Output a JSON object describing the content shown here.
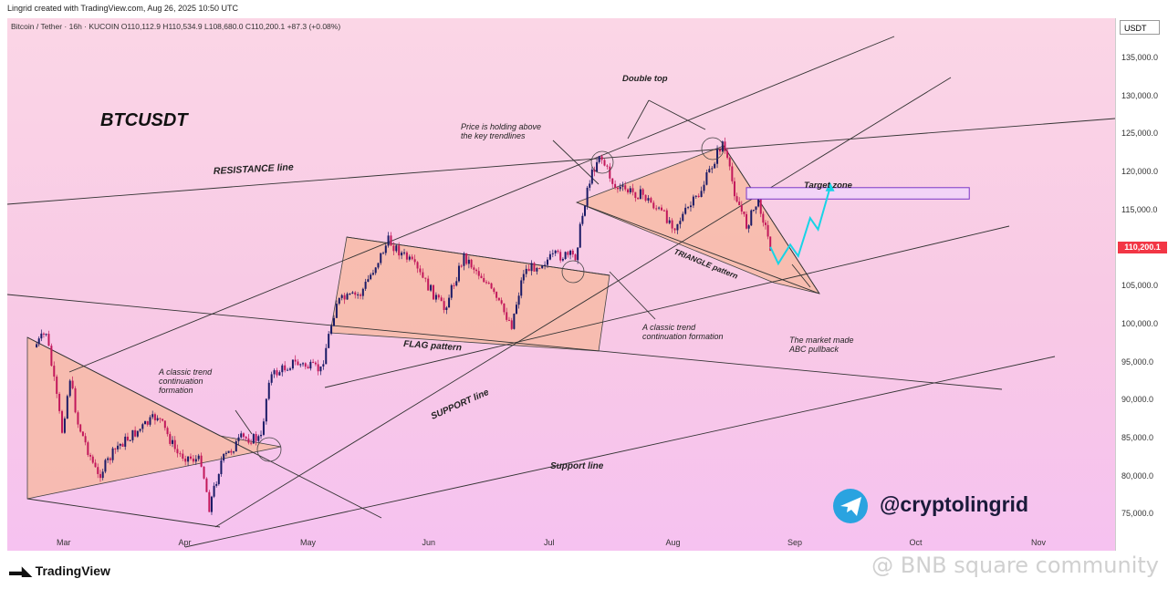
{
  "header": {
    "created_by": "Lingrid created with TradingView.com, Aug 26, 2025 10:50 UTC",
    "symbol_line": "Bitcoin / Tether · 16h · KUCOIN  O110,112.9  H110,534.9  L108,680.0  C110,200.1  +87.3 (+0.08%)"
  },
  "price_axis": {
    "currency": "USDT",
    "last_price": "110,200.1",
    "last_price_value": 110200.1,
    "ticks": [
      {
        "label": "135,000.0",
        "value": 135000
      },
      {
        "label": "130,000.0",
        "value": 130000
      },
      {
        "label": "125,000.0",
        "value": 125000
      },
      {
        "label": "120,000.0",
        "value": 120000
      },
      {
        "label": "115,000.0",
        "value": 115000
      },
      {
        "label": "105,000.0",
        "value": 105000
      },
      {
        "label": "100,000.0",
        "value": 100000
      },
      {
        "label": "95,000.0",
        "value": 95000
      },
      {
        "label": "90,000.0",
        "value": 90000
      },
      {
        "label": "85,000.0",
        "value": 85000
      },
      {
        "label": "80,000.0",
        "value": 80000
      },
      {
        "label": "75,000.0",
        "value": 75000
      }
    ]
  },
  "time_axis": {
    "labels": [
      "Mar",
      "Apr",
      "May",
      "Jun",
      "Jul",
      "Aug",
      "Sep",
      "Oct",
      "Nov"
    ]
  },
  "annotations": {
    "title": "BTCUSDT",
    "resistance": "RESISTANCE line",
    "flag": "FLAG pattern",
    "support": "SUPPORT line",
    "support_lower": "Support line",
    "triangle": "TRIANGLE pattern",
    "double_top": "Double top",
    "holding_1": "Price is holding above",
    "holding_2": "the key trendlines",
    "target": "Target zone",
    "trend1_1": "A classic trend",
    "trend1_2": "continuation",
    "trend1_3": "formation",
    "trend2_1": "A classic trend",
    "trend2_2": "continuation formation",
    "abc_1": "The market made",
    "abc_2": "ABC pullback",
    "handle": "@cryptolingrid"
  },
  "footer": {
    "brand": "TradingView",
    "watermark": "@ BNB square community"
  },
  "colors": {
    "candle_up": "#1a1a66",
    "candle_down": "#c2185b",
    "pattern_fill": "#f7b89e",
    "projection": "#18d4e6",
    "target_box": "#7a38c8",
    "telegram": "#2aa3e0"
  },
  "chart_data": {
    "type": "candlestick",
    "title": "BTCUSDT",
    "pair": "Bitcoin / Tether",
    "interval": "16h",
    "exchange": "KUCOIN",
    "ylim": [
      73000,
      139000
    ],
    "x_months": [
      "Mar",
      "Apr",
      "May",
      "Jun",
      "Jul",
      "Aug",
      "Sep",
      "Oct",
      "Nov"
    ],
    "close_path": [
      {
        "date": "2025-02-22",
        "price": 97000
      },
      {
        "date": "2025-02-25",
        "price": 99000
      },
      {
        "date": "2025-03-01",
        "price": 86000
      },
      {
        "date": "2025-03-03",
        "price": 93000
      },
      {
        "date": "2025-03-05",
        "price": 87000
      },
      {
        "date": "2025-03-10",
        "price": 80000
      },
      {
        "date": "2025-03-15",
        "price": 84000
      },
      {
        "date": "2025-03-20",
        "price": 86000
      },
      {
        "date": "2025-03-25",
        "price": 88000
      },
      {
        "date": "2025-03-30",
        "price": 83000
      },
      {
        "date": "2025-04-05",
        "price": 82000
      },
      {
        "date": "2025-04-07",
        "price": 76000
      },
      {
        "date": "2025-04-10",
        "price": 82000
      },
      {
        "date": "2025-04-15",
        "price": 85000
      },
      {
        "date": "2025-04-20",
        "price": 85000
      },
      {
        "date": "2025-04-22",
        "price": 93000
      },
      {
        "date": "2025-04-28",
        "price": 95000
      },
      {
        "date": "2025-05-05",
        "price": 94000
      },
      {
        "date": "2025-05-09",
        "price": 103000
      },
      {
        "date": "2025-05-15",
        "price": 104000
      },
      {
        "date": "2025-05-22",
        "price": 111000
      },
      {
        "date": "2025-05-28",
        "price": 108000
      },
      {
        "date": "2025-06-05",
        "price": 102000
      },
      {
        "date": "2025-06-10",
        "price": 109000
      },
      {
        "date": "2025-06-15",
        "price": 106000
      },
      {
        "date": "2025-06-22",
        "price": 100000
      },
      {
        "date": "2025-06-25",
        "price": 107000
      },
      {
        "date": "2025-07-03",
        "price": 109000
      },
      {
        "date": "2025-07-08",
        "price": 109000
      },
      {
        "date": "2025-07-11",
        "price": 118000
      },
      {
        "date": "2025-07-14",
        "price": 122500
      },
      {
        "date": "2025-07-18",
        "price": 118000
      },
      {
        "date": "2025-07-25",
        "price": 117000
      },
      {
        "date": "2025-08-02",
        "price": 113000
      },
      {
        "date": "2025-08-08",
        "price": 117000
      },
      {
        "date": "2025-08-14",
        "price": 124000
      },
      {
        "date": "2025-08-17",
        "price": 117500
      },
      {
        "date": "2025-08-20",
        "price": 113000
      },
      {
        "date": "2025-08-23",
        "price": 116500
      },
      {
        "date": "2025-08-26",
        "price": 110200
      }
    ],
    "projection": [
      {
        "date": "2025-08-26",
        "price": 110200
      },
      {
        "date": "2025-08-28",
        "price": 108000
      },
      {
        "date": "2025-08-31",
        "price": 110500
      },
      {
        "date": "2025-09-02",
        "price": 109000
      },
      {
        "date": "2025-09-05",
        "price": 114000
      },
      {
        "date": "2025-09-07",
        "price": 112500
      },
      {
        "date": "2025-09-10",
        "price": 118000
      }
    ],
    "target_zone": {
      "from": "2025-08-20",
      "to": "2025-10-15",
      "low": 116500,
      "high": 118000
    },
    "last": 110200.1,
    "open": 110112.9,
    "high": 110534.9,
    "low": 108680.0,
    "close": 110200.1,
    "change": "+87.3 (+0.08%)"
  }
}
